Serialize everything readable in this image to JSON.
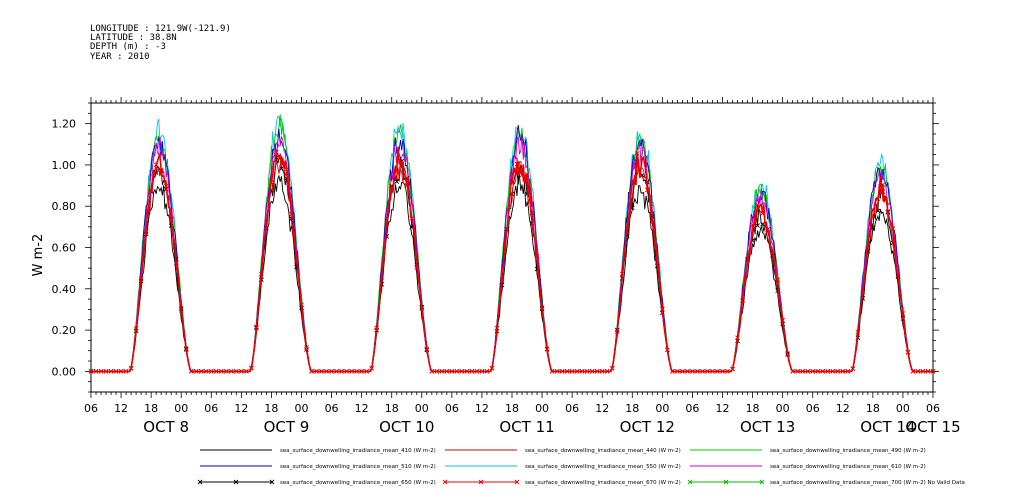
{
  "header": {
    "lines": [
      "LONGITUDE : 121.9W(-121.9)",
      "LATITUDE : 38.8N",
      "DEPTH (m) : -3",
      "YEAR : 2010"
    ]
  },
  "chart_data": {
    "type": "line",
    "title": "",
    "xlabel": "",
    "ylabel": "W m-2",
    "ylim": [
      -0.1,
      1.3
    ],
    "y_ticks": [
      0.0,
      0.2,
      0.4,
      0.6,
      0.8,
      1.0,
      1.2
    ],
    "y_tick_labels": [
      "0.00",
      "0.20",
      "0.40",
      "0.60",
      "0.80",
      "1.00",
      "1.20"
    ],
    "x_unit": "hours since Oct 8 00:00",
    "xlim": [
      -18,
      150
    ],
    "x_hour_ticks": [
      -18,
      -12,
      -6,
      0,
      6,
      12,
      18,
      24,
      30,
      36,
      42,
      48,
      54,
      60,
      66,
      72,
      78,
      84,
      90,
      96,
      102,
      108,
      114,
      120,
      126,
      132,
      138,
      144,
      150
    ],
    "x_hour_tick_labels": [
      "06",
      "12",
      "18",
      "00",
      "06",
      "12",
      "18",
      "00",
      "06",
      "12",
      "18",
      "00",
      "06",
      "12",
      "18",
      "00",
      "06",
      "12",
      "18",
      "00",
      "06",
      "12",
      "18",
      "00",
      "06",
      "12",
      "18",
      "00",
      "06"
    ],
    "date_labels": [
      {
        "text": "OCT  8",
        "hour": -3
      },
      {
        "text": "OCT  9",
        "hour": 21
      },
      {
        "text": "OCT 10",
        "hour": 45
      },
      {
        "text": "OCT 11",
        "hour": 69
      },
      {
        "text": "OCT 12",
        "hour": 93
      },
      {
        "text": "OCT 13",
        "hour": 117
      },
      {
        "text": "OCT 14",
        "hour": 141
      },
      {
        "text": "OCT 15",
        "hour": 150
      }
    ],
    "days": [
      {
        "sunrise": -10.2,
        "peak_hour": -4.5,
        "sunset": 2.0,
        "peak": 1.01
      },
      {
        "sunrise": 13.8,
        "peak_hour": 19.5,
        "sunset": 26.0,
        "peak": 1.04
      },
      {
        "sunrise": 37.8,
        "peak_hour": 43.5,
        "sunset": 50.0,
        "peak": 1.02
      },
      {
        "sunrise": 61.8,
        "peak_hour": 67.5,
        "sunset": 74.0,
        "peak": 1.02
      },
      {
        "sunrise": 85.8,
        "peak_hour": 91.5,
        "sunset": 98.0,
        "peak": 1.0
      },
      {
        "sunrise": 109.8,
        "peak_hour": 115.5,
        "sunset": 122.0,
        "peak": 0.78
      },
      {
        "sunrise": 133.8,
        "peak_hour": 139.5,
        "sunset": 146.0,
        "peak": 0.88
      }
    ],
    "series": [
      {
        "name": "sea_surface_downwelling_irradiance_mean_410 (W m-2)",
        "color": "#000000",
        "scale": 0.88,
        "marker": "none"
      },
      {
        "name": "sea_surface_downwelling_irradiance_mean_440 (W m-2)",
        "color": "#dd0000",
        "scale": 0.97,
        "marker": "none"
      },
      {
        "name": "sea_surface_downwelling_irradiance_mean_490 (W m-2)",
        "color": "#00cc00",
        "scale": 1.12,
        "marker": "none"
      },
      {
        "name": "sea_surface_downwelling_irradiance_mean_510 (W m-2)",
        "color": "#0000cc",
        "scale": 1.1,
        "marker": "none"
      },
      {
        "name": "sea_surface_downwelling_irradiance_mean_550 (W m-2)",
        "color": "#00c8d8",
        "scale": 1.15,
        "marker": "none"
      },
      {
        "name": "sea_surface_downwelling_irradiance_mean_610 (W m-2)",
        "color": "#d000d0",
        "scale": 1.07,
        "marker": "none"
      },
      {
        "name": "sea_surface_downwelling_irradiance_mean_650 (W m-2)",
        "color": "#000000",
        "scale": 0.96,
        "marker": "x"
      },
      {
        "name": "sea_surface_downwelling_irradiance_mean_670 (W m-2)",
        "color": "#ee0000",
        "scale": 1.0,
        "marker": "x"
      },
      {
        "name": "sea_surface_downwelling_irradiance_mean_700 (W m-2) No Valid Data",
        "color": "#00bb00",
        "scale": 0.0,
        "marker": "x",
        "no_data": true
      }
    ]
  }
}
